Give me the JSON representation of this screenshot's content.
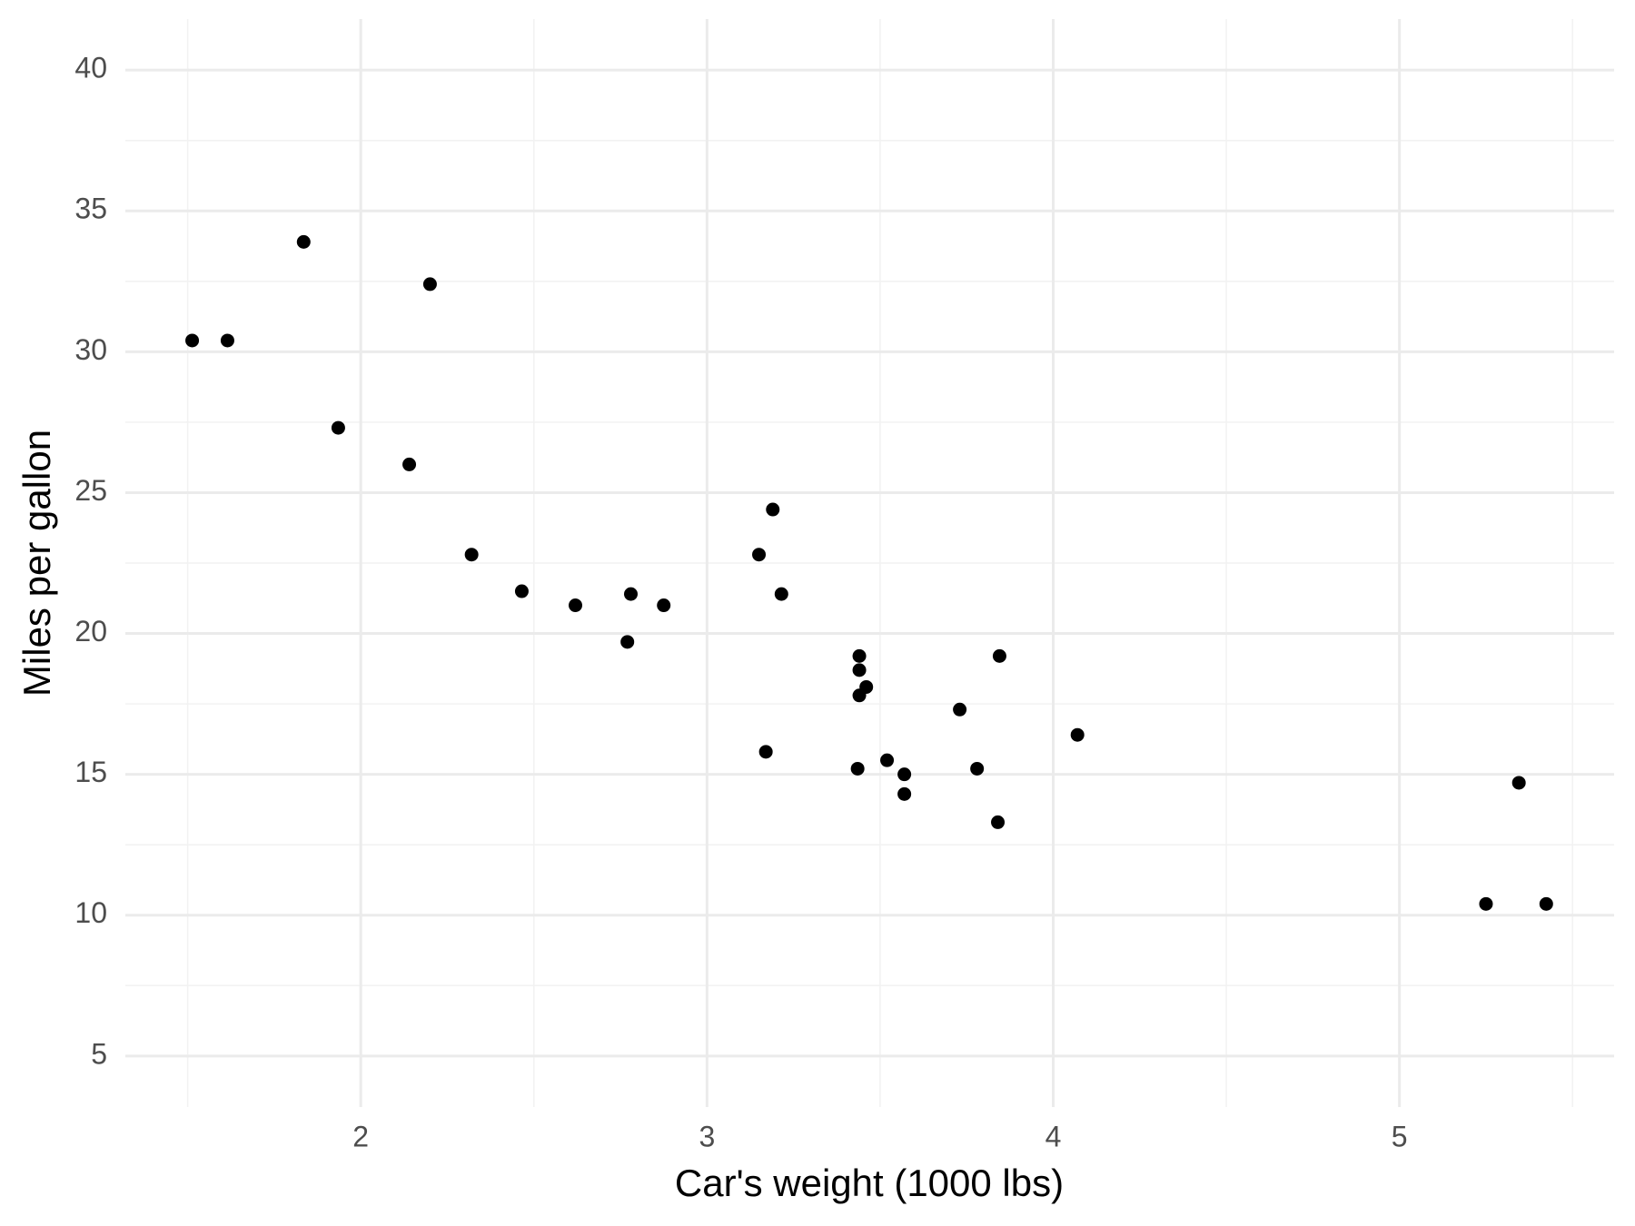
{
  "chart_data": {
    "type": "scatter",
    "x_label": "Car's weight (1000 lbs)",
    "y_label": "Miles per gallon",
    "x": [
      2.62,
      2.875,
      2.32,
      3.215,
      3.44,
      3.46,
      3.57,
      3.19,
      3.15,
      3.44,
      3.44,
      4.07,
      3.73,
      3.78,
      5.25,
      5.424,
      5.345,
      2.2,
      1.615,
      1.835,
      2.465,
      3.52,
      3.435,
      3.84,
      3.845,
      1.935,
      2.14,
      1.513,
      3.17,
      2.77,
      3.57,
      2.78
    ],
    "y": [
      21.0,
      21.0,
      22.8,
      21.4,
      18.7,
      18.1,
      14.3,
      24.4,
      22.8,
      19.2,
      17.8,
      16.4,
      17.3,
      15.2,
      10.4,
      10.4,
      14.7,
      32.4,
      30.4,
      33.9,
      21.5,
      15.5,
      15.2,
      13.3,
      19.2,
      27.3,
      26.0,
      30.4,
      15.8,
      19.7,
      15.0,
      21.4
    ],
    "color": "#000000",
    "xlim": [
      1.32,
      5.62
    ],
    "ylim": [
      3.19,
      41.81
    ],
    "xticks": [
      2,
      3,
      4,
      5
    ],
    "yticks": [
      5,
      10,
      15,
      20,
      25,
      30,
      35,
      40
    ],
    "x_minor_ticks": [
      1.5,
      2.5,
      3.5,
      4.5,
      5.5
    ],
    "y_minor_ticks": [
      7.5,
      12.5,
      17.5,
      22.5,
      27.5,
      32.5,
      37.5
    ],
    "grid": true
  }
}
